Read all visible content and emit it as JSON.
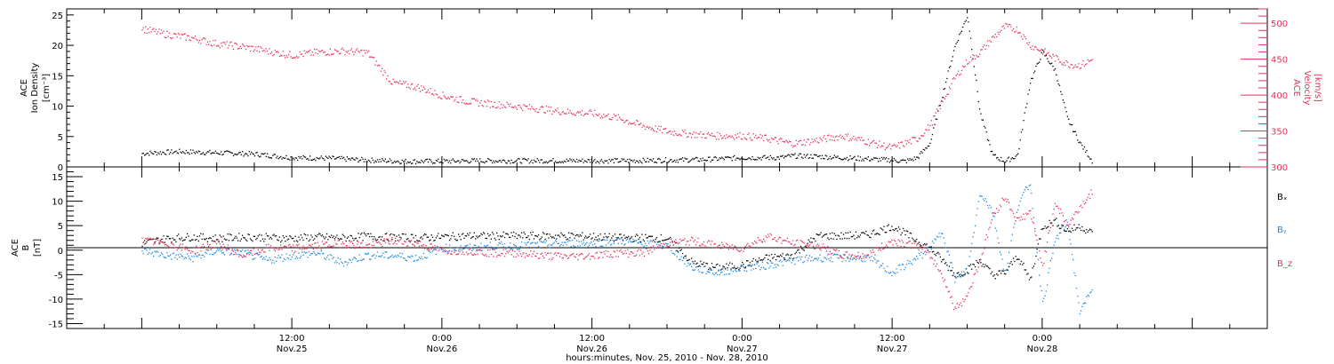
{
  "colors": {
    "black": "#000000",
    "blue": "#1e88e5",
    "red": "#e8305a"
  },
  "chart_data": [
    {
      "type": "scatter",
      "panel": "plasma",
      "ylabel_left": [
        "ACE",
        "Ion Density",
        "[cm⁻³]"
      ],
      "ylabel_right": [
        "ACE",
        "Velocity",
        "[km/s]"
      ],
      "ylim_left": [
        0,
        26
      ],
      "ylim_right": [
        300,
        520
      ],
      "yticks_left": [
        0,
        5,
        10,
        15,
        20,
        25
      ],
      "yticks_right": [
        300,
        350,
        400,
        450,
        500
      ],
      "series": [
        {
          "axis": "left",
          "color": "#000000",
          "x_hours": [
            0,
            3,
            6,
            9,
            12,
            15,
            18,
            21,
            24,
            27,
            30,
            33,
            36,
            39,
            42,
            45,
            48,
            51,
            52,
            54,
            57,
            60,
            61,
            62,
            63,
            64,
            65,
            66,
            67,
            68,
            69,
            70,
            71,
            72,
            73,
            74,
            75,
            76
          ],
          "values": [
            2.3,
            2.6,
            2.4,
            2.2,
            1.6,
            1.5,
            1.2,
            1.0,
            1.0,
            1.1,
            1.1,
            1.1,
            1.1,
            1.1,
            1.2,
            1.3,
            1.6,
            1.6,
            1.9,
            1.8,
            1.5,
            1.2,
            1.0,
            1.6,
            4,
            12,
            20,
            25,
            9,
            2,
            1,
            2,
            14,
            19,
            16,
            8,
            4,
            1
          ]
        },
        {
          "axis": "right",
          "color": "#e8305a",
          "x_hours": [
            0,
            2,
            4,
            6,
            8,
            10,
            12,
            14,
            16,
            18,
            20,
            22,
            24,
            26,
            28,
            30,
            32,
            34,
            36,
            38,
            40,
            42,
            44,
            46,
            48,
            50,
            52,
            54,
            56,
            58,
            60,
            62,
            63,
            64,
            65,
            66,
            67,
            68,
            69,
            70,
            71,
            72,
            73,
            74,
            75,
            76
          ],
          "values": [
            493,
            485,
            480,
            472,
            468,
            462,
            456,
            460,
            462,
            460,
            418,
            412,
            400,
            392,
            388,
            385,
            381,
            377,
            375,
            369,
            358,
            350,
            346,
            344,
            344,
            340,
            333,
            338,
            344,
            336,
            327,
            340,
            358,
            392,
            425,
            448,
            460,
            480,
            496,
            492,
            470,
            462,
            452,
            444,
            442,
            450
          ]
        }
      ]
    },
    {
      "type": "scatter",
      "panel": "magnetic-field",
      "ylabel": [
        "ACE",
        "B",
        "[nT]"
      ],
      "ylim": [
        -16,
        17
      ],
      "yticks": [
        -15,
        -10,
        -5,
        0,
        5,
        10,
        15
      ],
      "legend": [
        "Bx",
        "By",
        "Bz"
      ],
      "legend_placement": "right",
      "x_hours": [
        0,
        2,
        4,
        6,
        8,
        10,
        12,
        14,
        16,
        18,
        20,
        22,
        24,
        26,
        28,
        30,
        32,
        34,
        36,
        38,
        40,
        42,
        44,
        46,
        48,
        50,
        52,
        54,
        56,
        58,
        60,
        62,
        63,
        64,
        65,
        66,
        67,
        68,
        69,
        70,
        71,
        72,
        73,
        74,
        75,
        76
      ],
      "series": [
        {
          "name": "Bx",
          "color": "#000000",
          "values": [
            1.5,
            2.5,
            2.8,
            2.5,
            2.8,
            2.7,
            2.5,
            2.8,
            2.6,
            2.9,
            2.7,
            2.6,
            2.8,
            3.0,
            3.0,
            3.0,
            3.0,
            3.0,
            2.9,
            2.6,
            2.6,
            2.5,
            -2.5,
            -3.5,
            -3.0,
            -1.5,
            -1.0,
            3.0,
            3.0,
            3.2,
            5.0,
            2.0,
            0.5,
            -2.0,
            -5.0,
            -4.0,
            -2.0,
            -5.0,
            -4.5,
            -1.0,
            -6.0,
            5.0,
            6.0,
            4.0,
            5.0,
            3.5
          ]
        },
        {
          "name": "By",
          "color": "#1e88e5",
          "values": [
            0.0,
            -1.0,
            -1.5,
            0.0,
            -0.5,
            -2.0,
            -1.0,
            -0.5,
            -2.5,
            -1.0,
            -1.0,
            -1.5,
            0.5,
            0.5,
            1.0,
            1.0,
            1.2,
            1.5,
            1.5,
            2.0,
            1.5,
            1.0,
            -3.5,
            -4.5,
            -3.5,
            -3.0,
            -2.0,
            -1.5,
            -1.5,
            -1.5,
            -4.5,
            -1.5,
            0.5,
            4.0,
            -6.0,
            -4.0,
            12.0,
            8.0,
            -5.0,
            9.0,
            14.0,
            -11.0,
            2.0,
            6.0,
            -13.0,
            -7.0
          ]
        },
        {
          "name": "Bz",
          "color": "#e8305a",
          "values": [
            2.0,
            1.5,
            0.0,
            1.5,
            -1.0,
            0.5,
            0.5,
            1.0,
            1.5,
            1.0,
            2.0,
            1.5,
            0.0,
            0.0,
            -0.5,
            -0.5,
            -1.0,
            -1.2,
            -1.0,
            -0.5,
            -0.5,
            1.5,
            2.0,
            1.0,
            0.5,
            3.0,
            1.5,
            1.0,
            -1.0,
            -1.0,
            2.0,
            1.0,
            -1.0,
            -5.0,
            -12.0,
            -9.0,
            -2.0,
            7.0,
            11.0,
            6.0,
            8.0,
            -3.0,
            10.0,
            5.0,
            9.0,
            12.0
          ]
        }
      ]
    }
  ],
  "x_axis": {
    "range_hours": [
      -6,
      90
    ],
    "ticks": [
      {
        "hour": 12,
        "time": "12:00",
        "date": "Nov.25"
      },
      {
        "hour": 24,
        "time": "0:00",
        "date": "Nov.26"
      },
      {
        "hour": 36,
        "time": "12:00",
        "date": "Nov.26"
      },
      {
        "hour": 48,
        "time": "0:00",
        "date": "Nov.27"
      },
      {
        "hour": 60,
        "time": "12:00",
        "date": "Nov.27"
      },
      {
        "hour": 72,
        "time": "0:00",
        "date": "Nov.28"
      }
    ],
    "title": "hours:minutes, Nov. 25, 2010 - Nov. 28, 2010"
  },
  "labels": {
    "top_left": [
      "ACE",
      "Ion Density",
      "[cm⁻³]"
    ],
    "top_right": [
      "ACE",
      "Velocity",
      "[km/s]"
    ],
    "bottom_left": [
      "ACE",
      "B",
      "[nT]"
    ],
    "legend": [
      "Bₓ",
      "Bᵧ",
      "B_z"
    ]
  }
}
